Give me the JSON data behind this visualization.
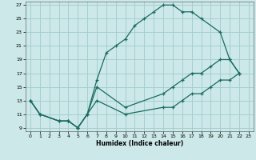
{
  "xlabel": "Humidex (Indice chaleur)",
  "bg_color": "#cce8e8",
  "line_color": "#1a6b62",
  "grid_color": "#a0cccc",
  "xlim": [
    -0.5,
    23.5
  ],
  "ylim": [
    8.5,
    27.5
  ],
  "xticks": [
    0,
    1,
    2,
    3,
    4,
    5,
    6,
    7,
    8,
    9,
    10,
    11,
    12,
    13,
    14,
    15,
    16,
    17,
    18,
    19,
    20,
    21,
    22,
    23
  ],
  "yticks": [
    9,
    11,
    13,
    15,
    17,
    19,
    21,
    23,
    25,
    27
  ],
  "curve1_x": [
    0,
    1,
    3,
    4,
    5,
    6,
    7,
    8,
    9,
    10,
    11,
    12,
    13,
    14,
    15,
    16,
    17,
    18,
    20,
    21,
    22
  ],
  "curve1_y": [
    13,
    11,
    10,
    10,
    9,
    11,
    16,
    20,
    21,
    22,
    24,
    25,
    26,
    27,
    27,
    26,
    26,
    25,
    23,
    19,
    17
  ],
  "curve2_x": [
    0,
    1,
    3,
    4,
    5,
    6,
    7,
    10,
    14,
    15,
    16,
    17,
    18,
    19,
    20,
    21,
    22
  ],
  "curve2_y": [
    13,
    11,
    10,
    10,
    9,
    11,
    15,
    12,
    14,
    15,
    16,
    17,
    17,
    18,
    19,
    19,
    17
  ],
  "curve3_x": [
    0,
    1,
    3,
    4,
    5,
    6,
    7,
    10,
    14,
    15,
    16,
    17,
    18,
    19,
    20,
    21,
    22
  ],
  "curve3_y": [
    13,
    11,
    10,
    10,
    9,
    11,
    13,
    11,
    12,
    12,
    13,
    14,
    14,
    15,
    16,
    16,
    17
  ]
}
